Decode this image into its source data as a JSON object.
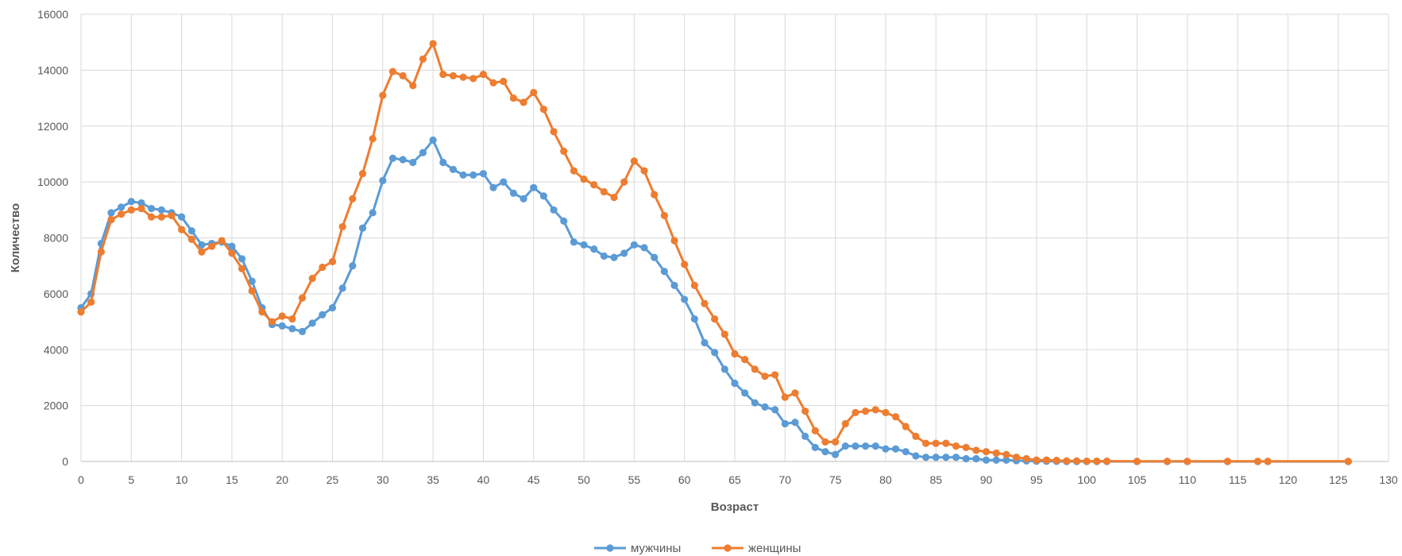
{
  "chart_data": {
    "type": "line",
    "title": "",
    "xlabel": "Возраст",
    "ylabel": "Количество",
    "xlim": [
      0,
      130
    ],
    "ylim": [
      0,
      16000
    ],
    "x_ticks": [
      0,
      5,
      10,
      15,
      20,
      25,
      30,
      35,
      40,
      45,
      50,
      55,
      60,
      65,
      70,
      75,
      80,
      85,
      90,
      95,
      100,
      105,
      110,
      115,
      120,
      125,
      130
    ],
    "y_ticks": [
      0,
      2000,
      4000,
      6000,
      8000,
      10000,
      12000,
      14000,
      16000
    ],
    "grid": true,
    "legend_position": "bottom",
    "series": [
      {
        "name": "мужчины",
        "color": "#5b9bd5",
        "x": [
          0,
          1,
          2,
          3,
          4,
          5,
          6,
          7,
          8,
          9,
          10,
          11,
          12,
          13,
          14,
          15,
          16,
          17,
          18,
          19,
          20,
          21,
          22,
          23,
          24,
          25,
          26,
          27,
          28,
          29,
          30,
          31,
          32,
          33,
          34,
          35,
          36,
          37,
          38,
          39,
          40,
          41,
          42,
          43,
          44,
          45,
          46,
          47,
          48,
          49,
          50,
          51,
          52,
          53,
          54,
          55,
          56,
          57,
          58,
          59,
          60,
          61,
          62,
          63,
          64,
          65,
          66,
          67,
          68,
          69,
          70,
          71,
          72,
          73,
          74,
          75,
          76,
          77,
          78,
          79,
          80,
          81,
          82,
          83,
          84,
          85,
          86,
          87,
          88,
          89,
          90,
          91,
          92,
          93,
          94,
          95,
          96,
          97,
          98,
          99,
          100,
          101,
          102,
          105,
          108,
          110,
          114,
          117,
          118,
          126
        ],
        "y": [
          5500,
          6000,
          7800,
          8900,
          9100,
          9300,
          9250,
          9050,
          9000,
          8900,
          8750,
          8250,
          7750,
          7800,
          7850,
          7700,
          7250,
          6450,
          5500,
          4900,
          4850,
          4750,
          4650,
          4950,
          5250,
          5500,
          6200,
          7000,
          8350,
          8900,
          10050,
          10850,
          10800,
          10700,
          11050,
          11500,
          10700,
          10450,
          10250,
          10250,
          10300,
          9800,
          10000,
          9600,
          9400,
          9800,
          9500,
          9000,
          8600,
          7850,
          7750,
          7600,
          7350,
          7300,
          7450,
          7750,
          7650,
          7300,
          6800,
          6300,
          5800,
          5100,
          4250,
          3900,
          3300,
          2800,
          2450,
          2100,
          1950,
          1850,
          1350,
          1400,
          900,
          500,
          350,
          250,
          550,
          550,
          550,
          550,
          450,
          450,
          350,
          200,
          150,
          150,
          150,
          150,
          100,
          100,
          50,
          50,
          50,
          30,
          20,
          10,
          10,
          5,
          0,
          0,
          0,
          0,
          0,
          0,
          0,
          0,
          0,
          0,
          0,
          0
        ]
      },
      {
        "name": "женщины",
        "color": "#ed7d31",
        "x": [
          0,
          1,
          2,
          3,
          4,
          5,
          6,
          7,
          8,
          9,
          10,
          11,
          12,
          13,
          14,
          15,
          16,
          17,
          18,
          19,
          20,
          21,
          22,
          23,
          24,
          25,
          26,
          27,
          28,
          29,
          30,
          31,
          32,
          33,
          34,
          35,
          36,
          37,
          38,
          39,
          40,
          41,
          42,
          43,
          44,
          45,
          46,
          47,
          48,
          49,
          50,
          51,
          52,
          53,
          54,
          55,
          56,
          57,
          58,
          59,
          60,
          61,
          62,
          63,
          64,
          65,
          66,
          67,
          68,
          69,
          70,
          71,
          72,
          73,
          74,
          75,
          76,
          77,
          78,
          79,
          80,
          81,
          82,
          83,
          84,
          85,
          86,
          87,
          88,
          89,
          90,
          91,
          92,
          93,
          94,
          95,
          96,
          97,
          98,
          99,
          100,
          101,
          102,
          105,
          108,
          110,
          114,
          117,
          118,
          126
        ],
        "y": [
          5350,
          5700,
          7500,
          8650,
          8850,
          9000,
          9050,
          8750,
          8750,
          8800,
          8300,
          7950,
          7500,
          7700,
          7900,
          7450,
          6900,
          6100,
          5350,
          5000,
          5200,
          5100,
          5850,
          6550,
          6950,
          7150,
          8400,
          9400,
          10300,
          11550,
          13100,
          13950,
          13800,
          13450,
          14400,
          14950,
          13850,
          13800,
          13750,
          13700,
          13850,
          13550,
          13600,
          13000,
          12850,
          13200,
          12600,
          11800,
          11100,
          10400,
          10100,
          9900,
          9650,
          9450,
          10000,
          10750,
          10400,
          9550,
          8800,
          7900,
          7050,
          6300,
          5650,
          5100,
          4550,
          3850,
          3650,
          3300,
          3050,
          3100,
          2300,
          2450,
          1800,
          1100,
          700,
          700,
          1350,
          1750,
          1800,
          1850,
          1750,
          1600,
          1250,
          900,
          650,
          650,
          650,
          550,
          500,
          400,
          350,
          300,
          250,
          150,
          100,
          50,
          50,
          40,
          20,
          20,
          10,
          10,
          10,
          5,
          5,
          5,
          5,
          5,
          5,
          5
        ]
      }
    ]
  }
}
